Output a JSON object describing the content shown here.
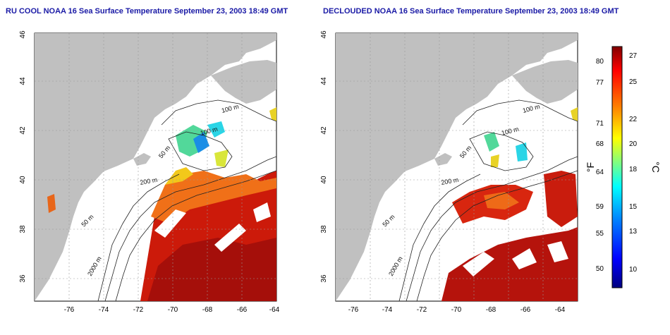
{
  "titles": {
    "left": "RU COOL NOAA 16 Sea Surface Temperature September 23, 2003 18:49 GMT",
    "right": "DECLOUDED NOAA 16 Sea Surface Temperature September 23, 2003 18:49 GMT"
  },
  "map": {
    "x_ticks": [
      "-76",
      "-74",
      "-72",
      "-70",
      "-68",
      "-66",
      "-64"
    ],
    "y_ticks": [
      "36",
      "38",
      "40",
      "42",
      "44",
      "46"
    ],
    "contour_labels_left": [
      "100 m",
      "100 m",
      "50 m",
      "200 m",
      "50 m",
      "2000 m"
    ],
    "contour_labels_right": [
      "100 m",
      "100 m",
      "50 m",
      "200 m",
      "50 m",
      "2000 m"
    ],
    "colors": {
      "land": "#c0c0c0",
      "cloud": "#ffffff",
      "grid": "#999999"
    }
  },
  "colorbar": {
    "f_label": "°F",
    "c_label": "°C",
    "f_ticks": [
      "80",
      "77",
      "71",
      "68",
      "64",
      "59",
      "55",
      "50"
    ],
    "c_ticks": [
      "27",
      "25",
      "22",
      "20",
      "18",
      "15",
      "13",
      "10"
    ],
    "gradient": [
      "#00007f",
      "#0000ff",
      "#0080ff",
      "#00ffff",
      "#80ff80",
      "#ffff00",
      "#ff8000",
      "#ff0000",
      "#800000"
    ]
  }
}
